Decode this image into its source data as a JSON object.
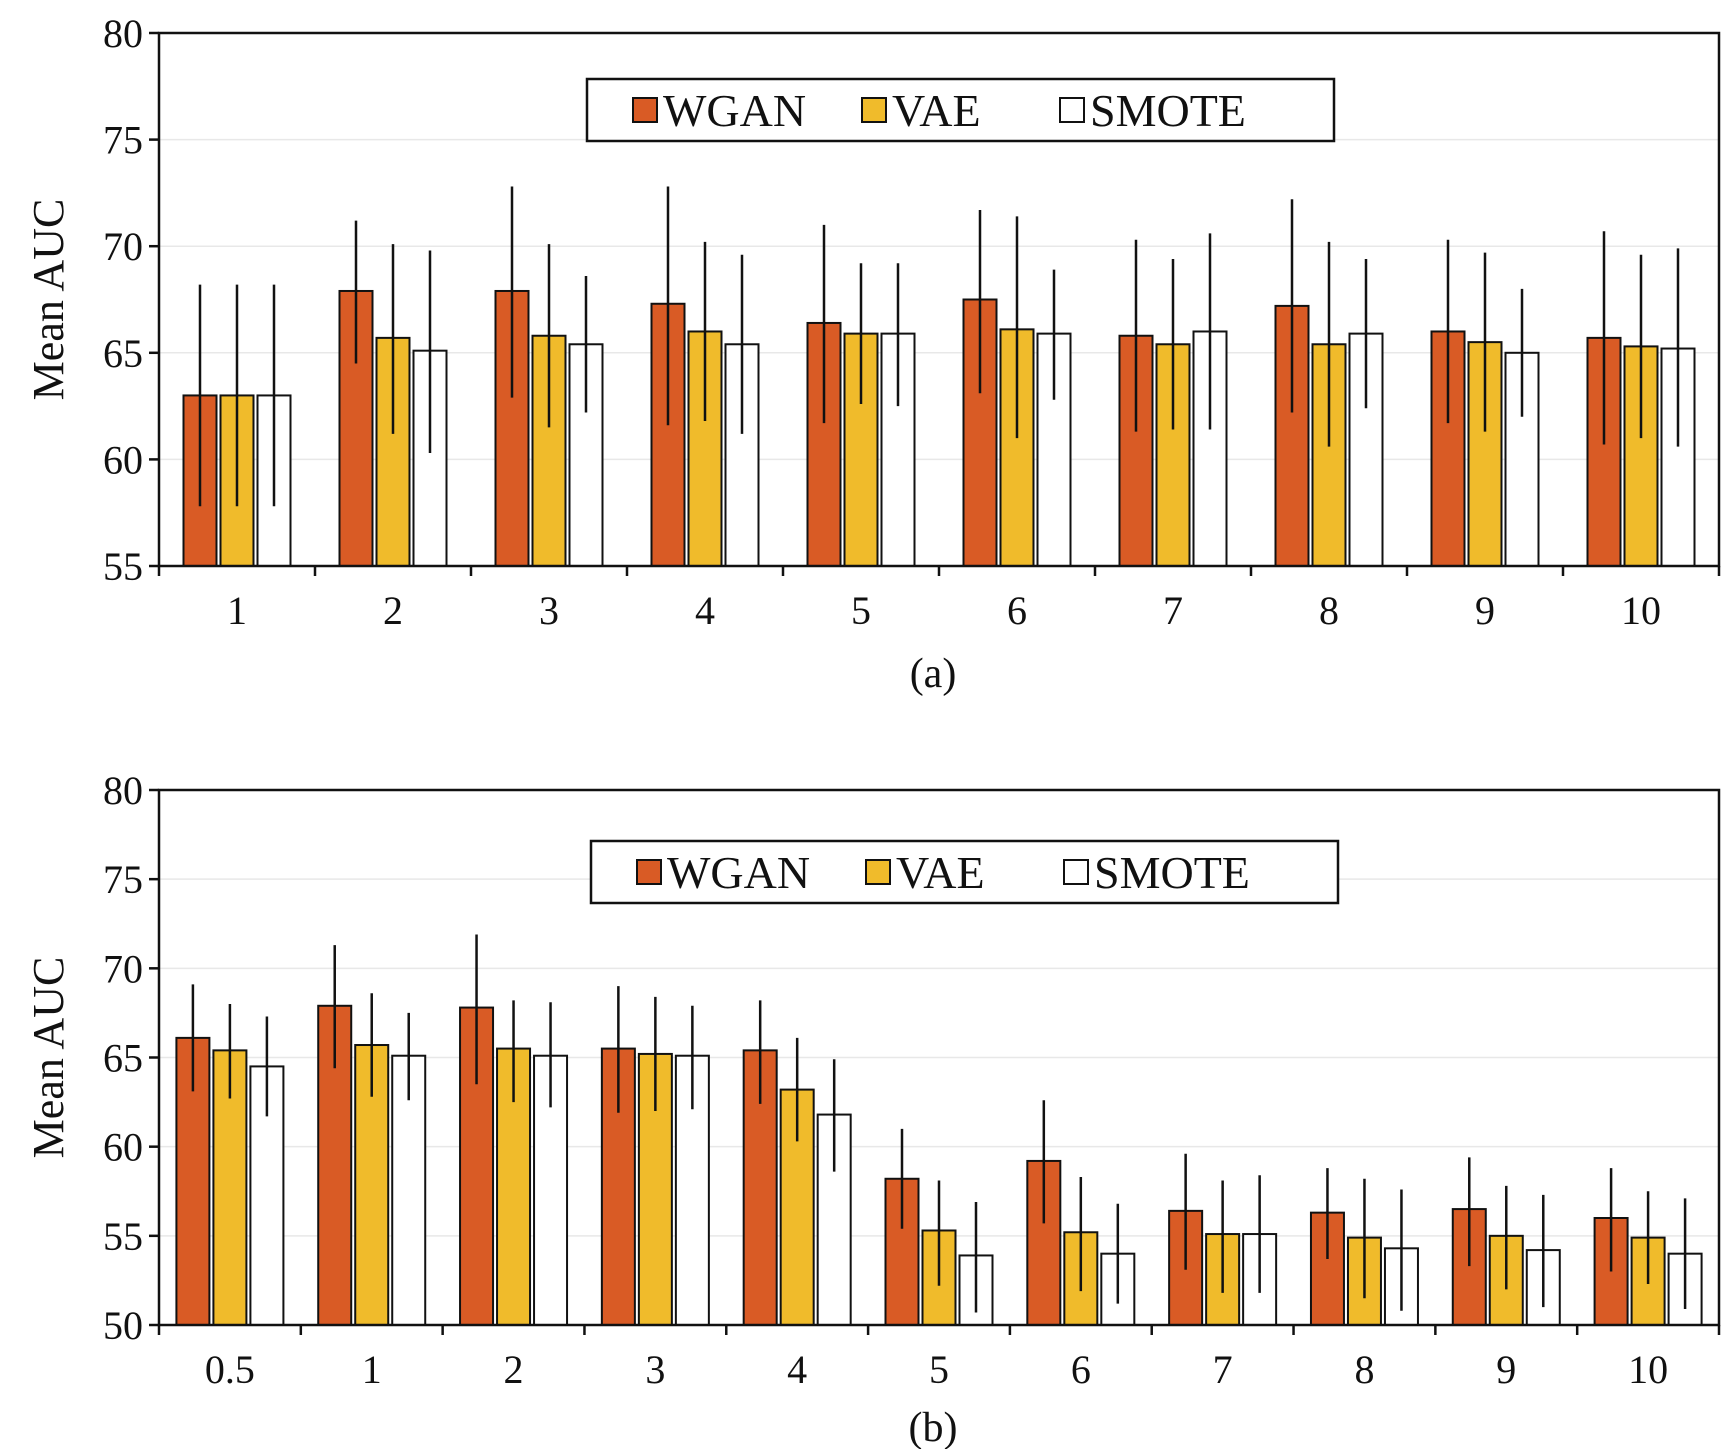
{
  "colors": {
    "WGAN": "#d95b25",
    "VAE": "#f0bb2b",
    "SMOTE": "#ffffff",
    "axis": "#111111",
    "grid": "#e8e8e8"
  },
  "chart_data": [
    {
      "type": "bar",
      "caption": "(a)",
      "ylabel": "Mean AUC",
      "ylim": [
        55,
        80
      ],
      "yticks": [
        55,
        60,
        65,
        70,
        75,
        80
      ],
      "grid": "horizontal",
      "legend_position": "top-center",
      "categories": [
        "1",
        "2",
        "3",
        "4",
        "5",
        "6",
        "7",
        "8",
        "9",
        "10"
      ],
      "series": [
        {
          "name": "WGAN",
          "values": [
            63.0,
            67.9,
            67.9,
            67.3,
            66.4,
            67.5,
            65.8,
            67.2,
            66.0,
            65.7
          ],
          "err_low": [
            57.8,
            64.5,
            62.9,
            61.6,
            61.7,
            63.1,
            61.3,
            62.2,
            61.7,
            60.7
          ],
          "err_high": [
            68.2,
            71.2,
            72.8,
            72.8,
            71.0,
            71.7,
            70.3,
            72.2,
            70.3,
            70.7
          ]
        },
        {
          "name": "VAE",
          "values": [
            63.0,
            65.7,
            65.8,
            66.0,
            65.9,
            66.1,
            65.4,
            65.4,
            65.5,
            65.3
          ],
          "err_low": [
            57.8,
            61.2,
            61.5,
            61.8,
            62.6,
            61.0,
            61.4,
            60.6,
            61.3,
            61.0
          ],
          "err_high": [
            68.2,
            70.1,
            70.1,
            70.2,
            69.2,
            71.4,
            69.4,
            70.2,
            69.7,
            69.6
          ]
        },
        {
          "name": "SMOTE",
          "values": [
            63.0,
            65.1,
            65.4,
            65.4,
            65.9,
            65.9,
            66.0,
            65.9,
            65.0,
            65.2
          ],
          "err_low": [
            57.8,
            60.3,
            62.2,
            61.2,
            62.5,
            62.8,
            61.4,
            62.4,
            62.0,
            60.6
          ],
          "err_high": [
            68.2,
            69.8,
            68.6,
            69.6,
            69.2,
            68.9,
            70.6,
            69.4,
            68.0,
            69.9
          ]
        }
      ]
    },
    {
      "type": "bar",
      "caption": "(b)",
      "ylabel": "Mean AUC",
      "ylim": [
        50,
        80
      ],
      "yticks": [
        50,
        55,
        60,
        65,
        70,
        75,
        80
      ],
      "grid": "horizontal",
      "legend_position": "top-center",
      "categories": [
        "0.5",
        "1",
        "2",
        "3",
        "4",
        "5",
        "6",
        "7",
        "8",
        "9",
        "10"
      ],
      "series": [
        {
          "name": "WGAN",
          "values": [
            66.1,
            67.9,
            67.8,
            65.5,
            65.4,
            58.2,
            59.2,
            56.4,
            56.3,
            56.5,
            56.0
          ],
          "err_low": [
            63.1,
            64.4,
            63.5,
            61.9,
            62.4,
            55.4,
            55.7,
            53.1,
            53.7,
            53.3,
            53.0
          ],
          "err_high": [
            69.1,
            71.3,
            71.9,
            69.0,
            68.2,
            61.0,
            62.6,
            59.6,
            58.8,
            59.4,
            58.8
          ]
        },
        {
          "name": "VAE",
          "values": [
            65.4,
            65.7,
            65.5,
            65.2,
            63.2,
            55.3,
            55.2,
            55.1,
            54.9,
            55.0,
            54.9
          ],
          "err_low": [
            62.7,
            62.8,
            62.5,
            62.0,
            60.3,
            52.2,
            51.9,
            51.8,
            51.5,
            52.0,
            52.3
          ],
          "err_high": [
            68.0,
            68.6,
            68.2,
            68.4,
            66.1,
            58.1,
            58.3,
            58.1,
            58.2,
            57.8,
            57.5
          ]
        },
        {
          "name": "SMOTE",
          "values": [
            64.5,
            65.1,
            65.1,
            65.1,
            61.8,
            53.9,
            54.0,
            55.1,
            54.3,
            54.2,
            54.0
          ],
          "err_low": [
            61.7,
            62.6,
            62.2,
            62.1,
            58.6,
            50.7,
            51.2,
            51.8,
            50.8,
            51.0,
            50.9
          ],
          "err_high": [
            67.3,
            67.5,
            68.1,
            67.9,
            64.9,
            56.9,
            56.8,
            58.4,
            57.6,
            57.3,
            57.1
          ]
        }
      ]
    }
  ]
}
